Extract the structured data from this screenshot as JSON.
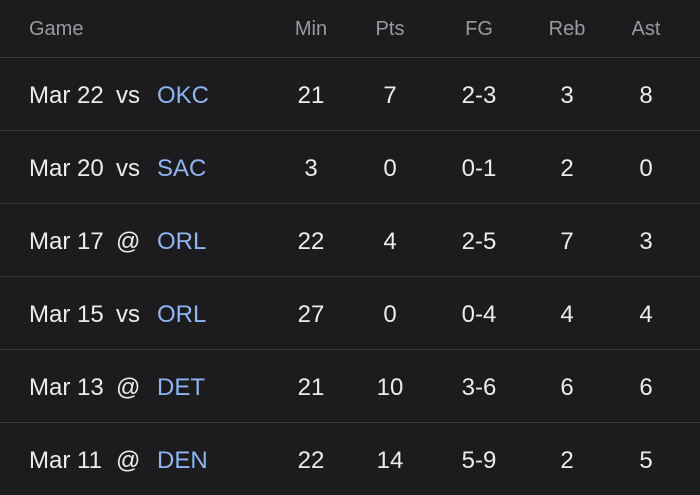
{
  "headers": {
    "game": "Game",
    "min": "Min",
    "pts": "Pts",
    "fg": "FG",
    "reb": "Reb",
    "ast": "Ast"
  },
  "games": [
    {
      "date": "Mar 22",
      "loc": "vs",
      "opp": "OKC",
      "min": "21",
      "pts": "7",
      "fg": "2-3",
      "reb": "3",
      "ast": "8"
    },
    {
      "date": "Mar 20",
      "loc": "vs",
      "opp": "SAC",
      "min": "3",
      "pts": "0",
      "fg": "0-1",
      "reb": "2",
      "ast": "0"
    },
    {
      "date": "Mar 17",
      "loc": "@",
      "opp": "ORL",
      "min": "22",
      "pts": "4",
      "fg": "2-5",
      "reb": "7",
      "ast": "3"
    },
    {
      "date": "Mar 15",
      "loc": "vs",
      "opp": "ORL",
      "min": "27",
      "pts": "0",
      "fg": "0-4",
      "reb": "4",
      "ast": "4"
    },
    {
      "date": "Mar 13",
      "loc": "@",
      "opp": "DET",
      "min": "21",
      "pts": "10",
      "fg": "3-6",
      "reb": "6",
      "ast": "6"
    },
    {
      "date": "Mar 11",
      "loc": "@",
      "opp": "DEN",
      "min": "22",
      "pts": "14",
      "fg": "5-9",
      "reb": "2",
      "ast": "5"
    }
  ],
  "colors": {
    "background": "#1c1c1e",
    "text": "#ececec",
    "header_text": "#9a9a9f",
    "team_link": "#8eb4f2",
    "divider": "#3a3a3c"
  }
}
